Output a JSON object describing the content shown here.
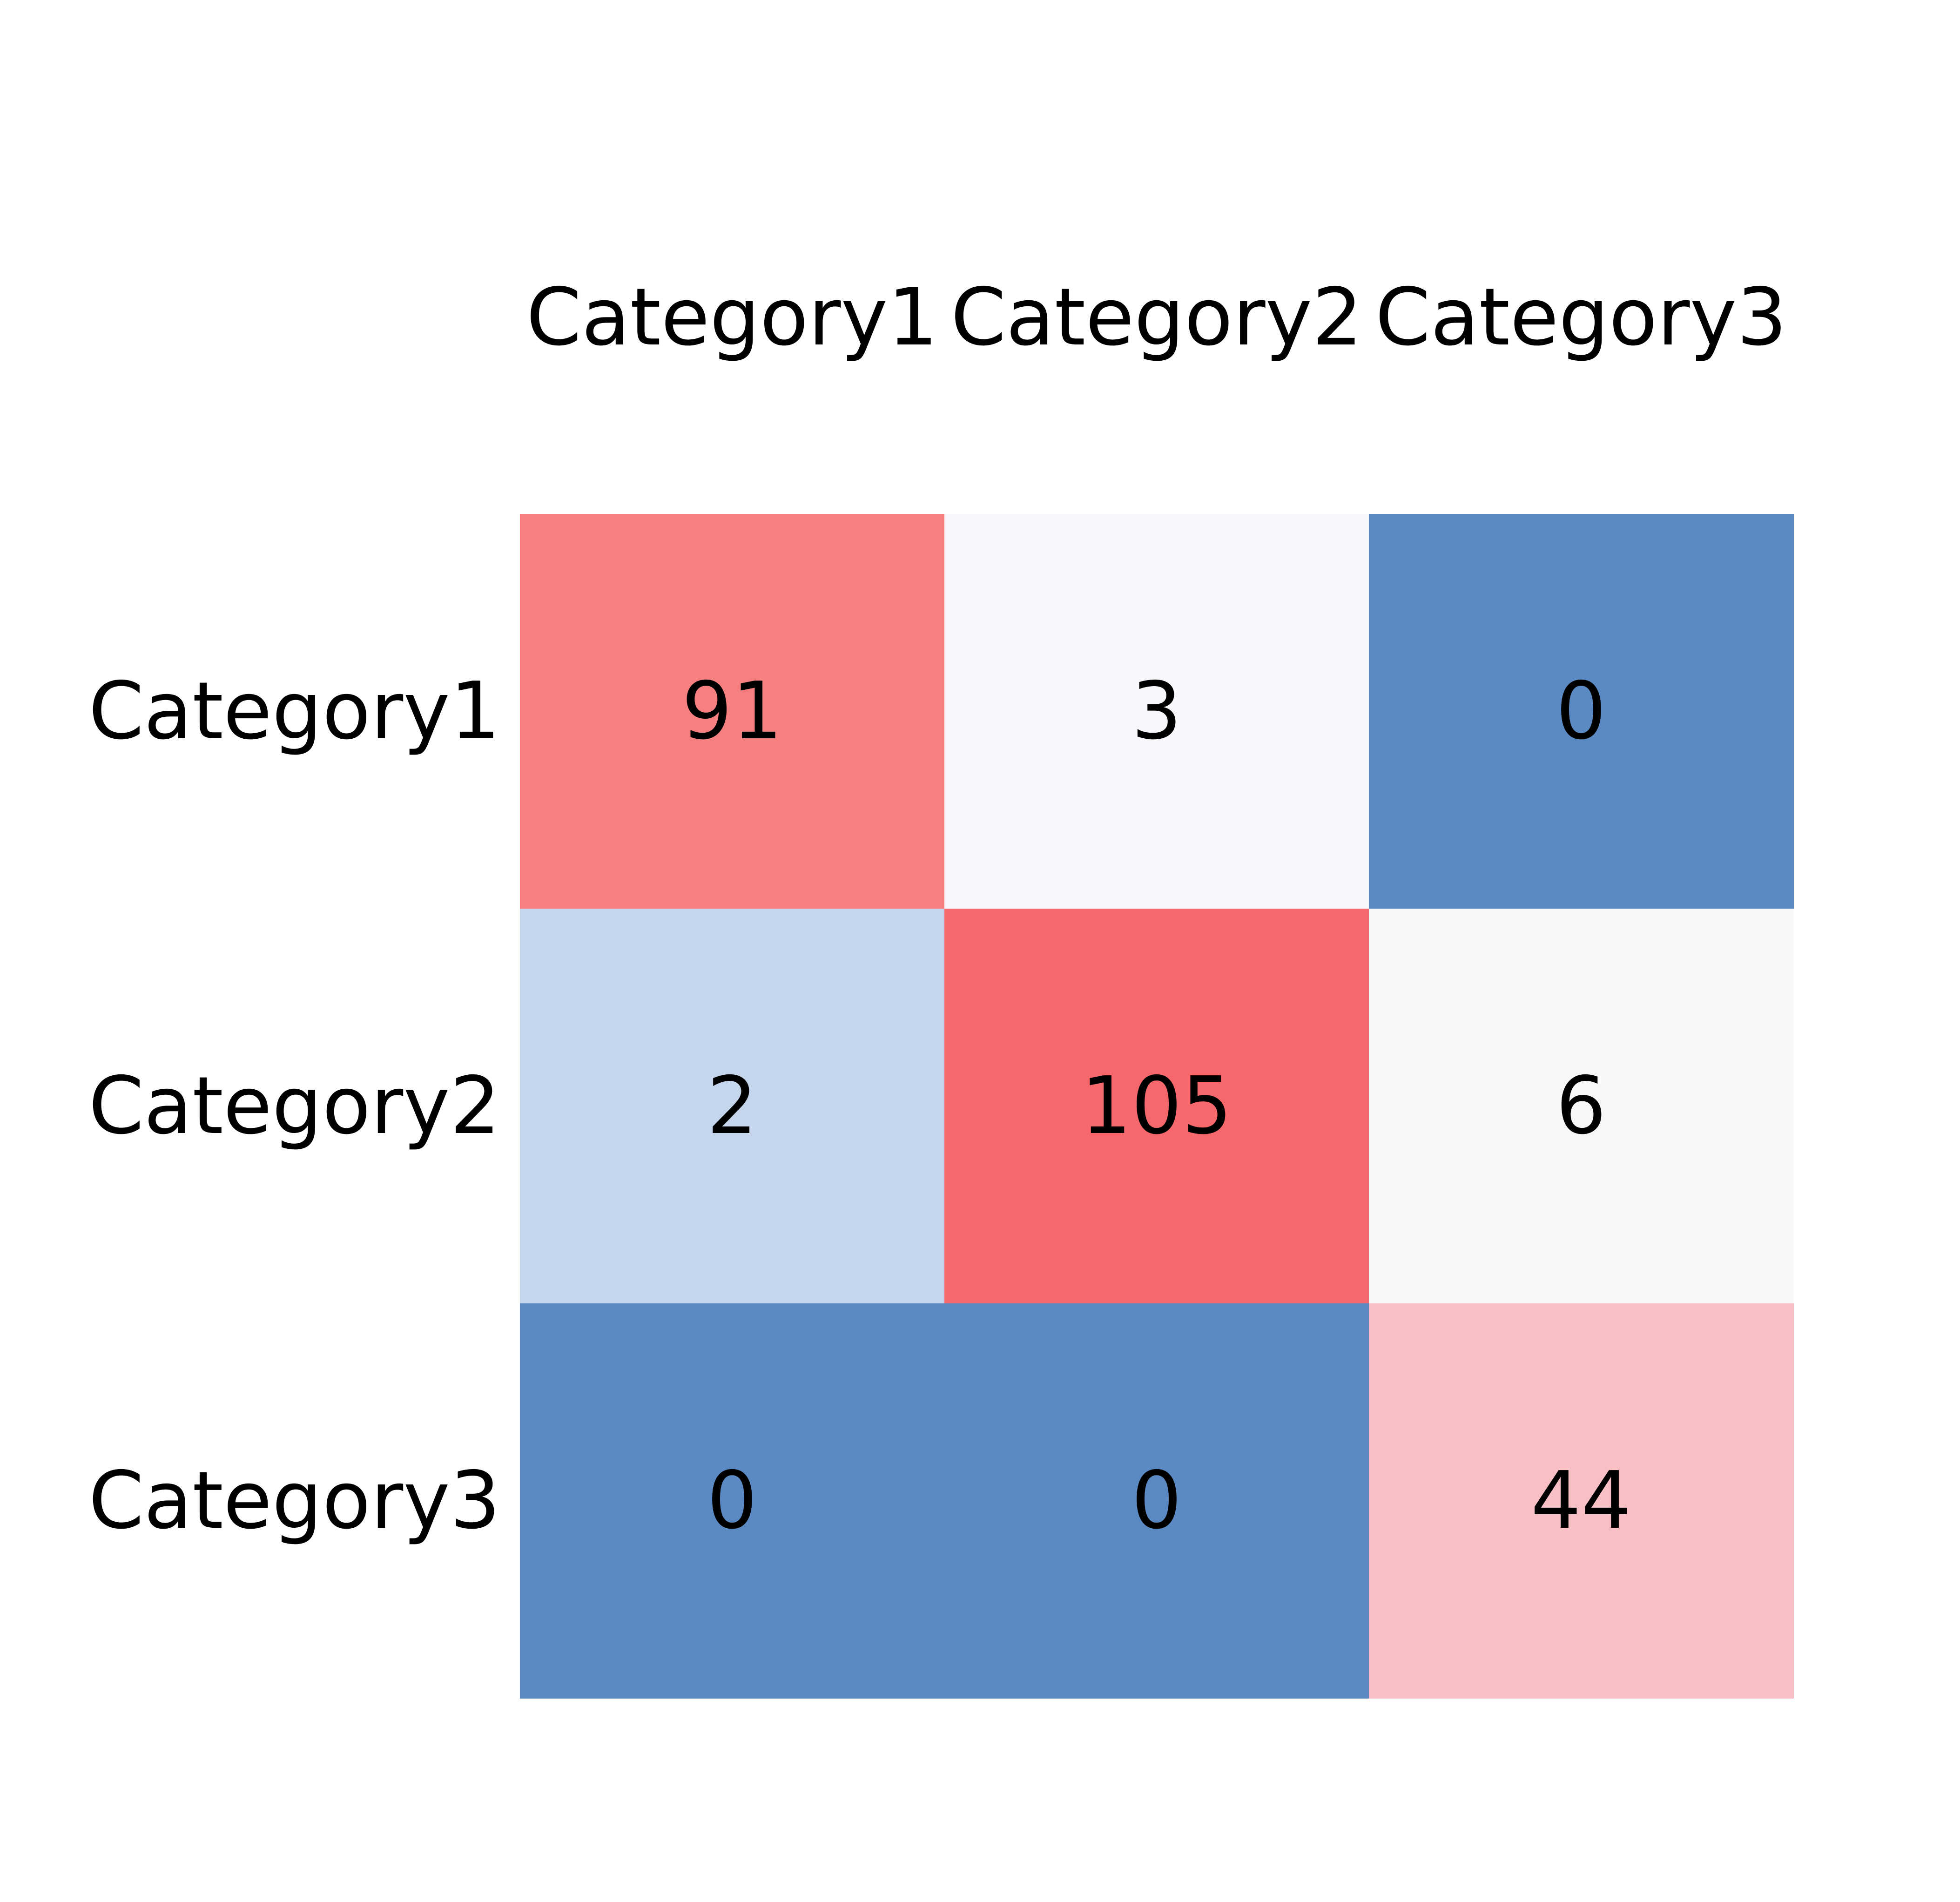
{
  "chart_data": {
    "type": "heatmap",
    "title": "",
    "xlabel": "",
    "ylabel": "",
    "x_labels": [
      "Category1",
      "Category2",
      "Category3"
    ],
    "y_labels": [
      "Category1",
      "Category2",
      "Category3"
    ],
    "values": [
      [
        91,
        3,
        0
      ],
      [
        2,
        105,
        6
      ],
      [
        0,
        0,
        44
      ]
    ],
    "x_tick_position": "top",
    "grid": false,
    "legend": "none",
    "colors": {
      "low": "#5b89c3",
      "mid": "#f8f8fc",
      "high": "#f6666c",
      "cells": [
        [
          "#f67f80",
          "#f8f8fc",
          "#5b89c3"
        ],
        [
          "#c5d5eb",
          "#f6686c",
          "#f8f6f7"
        ],
        [
          "#5b89c3",
          "#5b89c3",
          "#f8c0c4"
        ]
      ],
      "text": "#000000",
      "background": "#ffffff"
    }
  }
}
